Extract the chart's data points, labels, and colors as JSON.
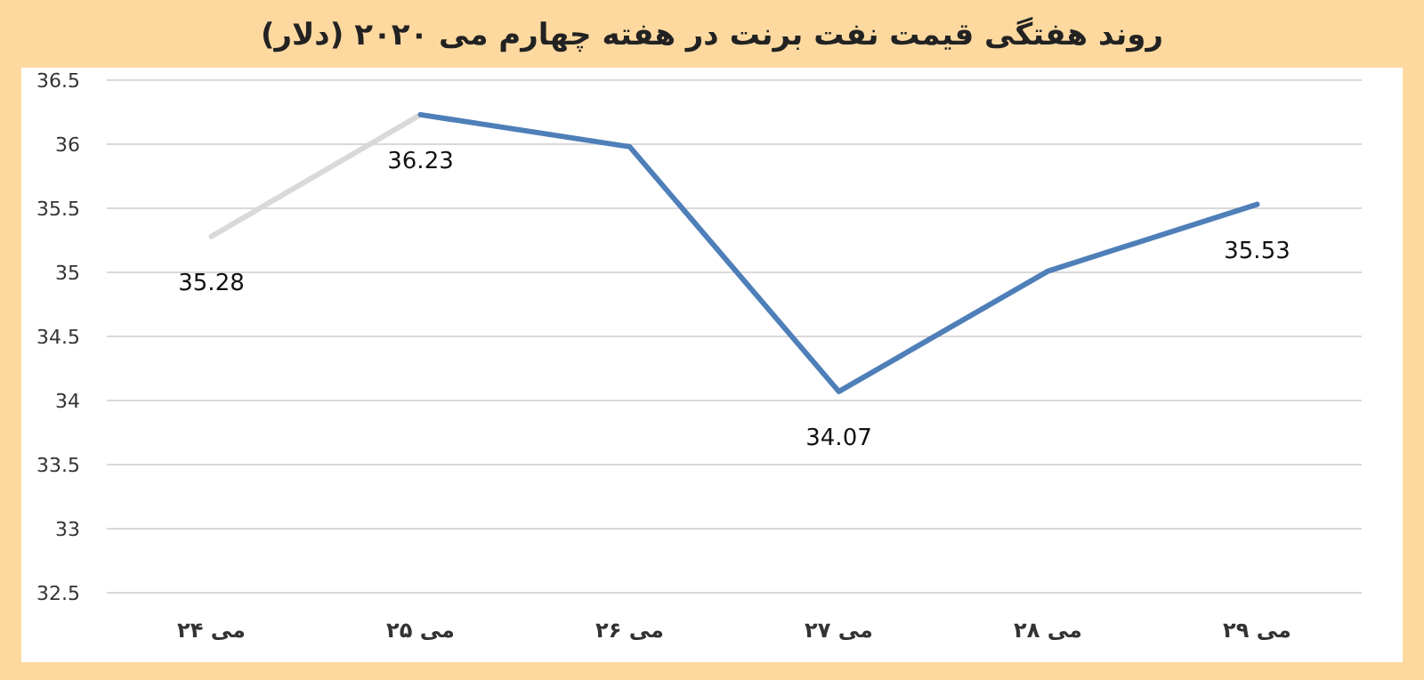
{
  "chart_data": {
    "type": "line",
    "title": "روند هفتگی قیمت نفت برنت در هفته چهارم می ۲۰۲۰ (دلار)",
    "categories": [
      "۲۴ می",
      "۲۵ می",
      "۲۶ می",
      "۲۷ می",
      "۲۸ می",
      "۲۹ می"
    ],
    "series": [
      {
        "color": "#d9d9d9",
        "values": [
          35.28,
          36.23,
          null,
          null,
          null,
          null
        ],
        "value_labels": [
          "35.28",
          null,
          null,
          null,
          null,
          null
        ]
      },
      {
        "color": "#4f7fb8",
        "values": [
          null,
          36.23,
          35.98,
          34.07,
          35.01,
          35.53
        ],
        "value_labels": [
          null,
          "36.23",
          null,
          "34.07",
          null,
          "35.53"
        ]
      }
    ],
    "ylim": [
      32.5,
      36.5
    ],
    "yticks": [
      32.5,
      33,
      33.5,
      34,
      34.5,
      35,
      35.5,
      36,
      36.5
    ],
    "grid": "y"
  }
}
